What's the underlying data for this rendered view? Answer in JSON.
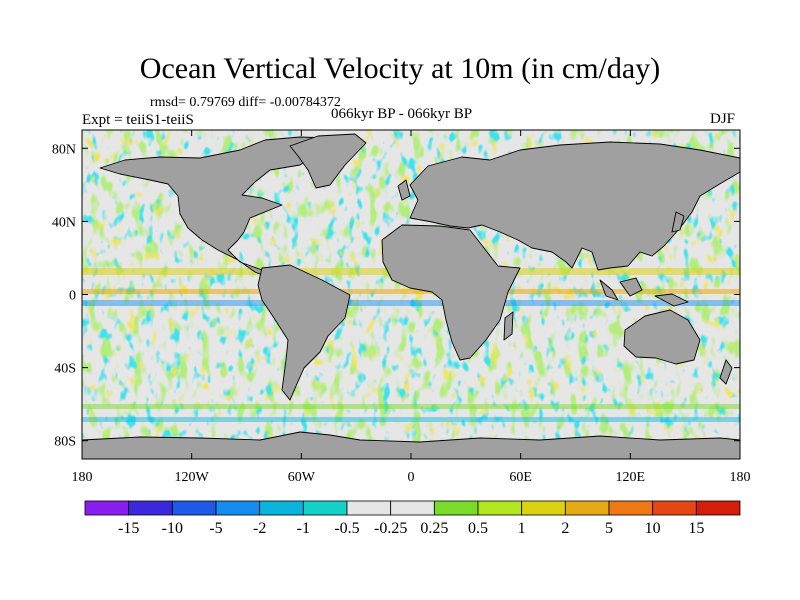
{
  "title": "Ocean Vertical Velocity at 10m (in cm/day)",
  "stats": "rmsd= 0.79769 diff= -0.00784372",
  "experiment": "Expt = teiiS1-teiiS",
  "period": "066kyr BP - 066kyr BP",
  "season": "DJF",
  "lat_labels": [
    "80N",
    "40N",
    "0",
    "40S",
    "80S"
  ],
  "lat_values": [
    80,
    40,
    0,
    -40,
    -80
  ],
  "lon_labels": [
    "180",
    "120W",
    "60W",
    "0",
    "60E",
    "120E",
    "180"
  ],
  "lon_values": [
    -180,
    -120,
    -60,
    0,
    60,
    120,
    180
  ],
  "colorbar": {
    "colors": [
      "#8a1ef0",
      "#3c28dc",
      "#1e5ae6",
      "#148cf0",
      "#0ab4dc",
      "#14d2c8",
      "#e6e6e6",
      "#e6e6e6",
      "#78dc28",
      "#b4e61e",
      "#dcd214",
      "#e6aa14",
      "#f07814",
      "#e64614",
      "#d21e0a"
    ],
    "labels": [
      "-15",
      "-10",
      "-5",
      "-2",
      "-1",
      "-0.5",
      "-0.25",
      "0.25",
      "0.5",
      "1",
      "2",
      "5",
      "10",
      "15"
    ]
  },
  "colors": {
    "land": "#a0a0a0",
    "ocean_neutral": "#e6e6e6",
    "coast": "#000000"
  }
}
